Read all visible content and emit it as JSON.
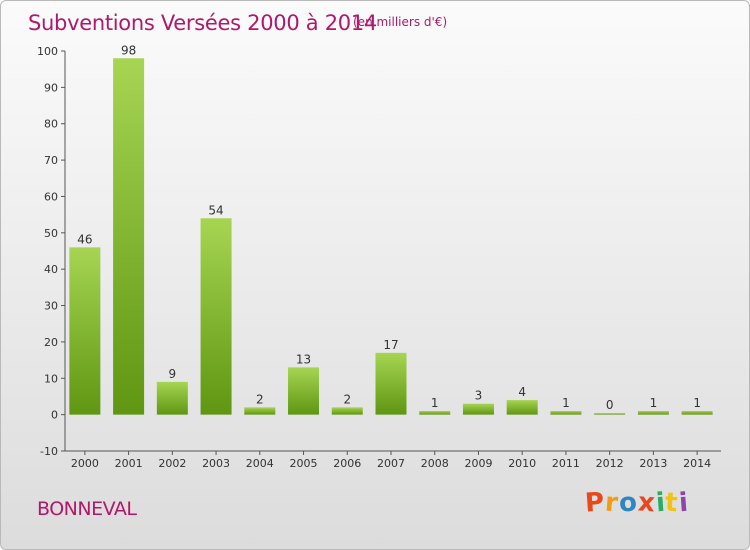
{
  "colors": {
    "bar_light": "#a6d552",
    "bar_dark": "#5f9612",
    "title": "#b0186b",
    "logo": [
      "#e8481c",
      "#f39c12",
      "#2e86c1",
      "#e8481c",
      "#27ae60",
      "#f1c40f",
      "#8e44ad"
    ]
  },
  "place_name": "BONNEVAL",
  "logo_text": "Proxiti",
  "chart_data": {
    "type": "bar",
    "title": "Subventions Versées 2000 à 2014",
    "subtitle": "(en milliers d'€)",
    "xlabel": "",
    "ylabel": "",
    "ylim": [
      -10,
      100
    ],
    "yticks": [
      -10,
      0,
      10,
      20,
      30,
      40,
      50,
      60,
      70,
      80,
      90,
      100
    ],
    "categories": [
      "2000",
      "2001",
      "2002",
      "2003",
      "2004",
      "2005",
      "2006",
      "2007",
      "2008",
      "2009",
      "2010",
      "2011",
      "2012",
      "2013",
      "2014"
    ],
    "values": [
      46,
      98,
      9,
      54,
      2,
      13,
      2,
      17,
      1,
      3,
      4,
      1,
      0,
      1,
      1
    ],
    "grid": false,
    "legend": "none"
  }
}
